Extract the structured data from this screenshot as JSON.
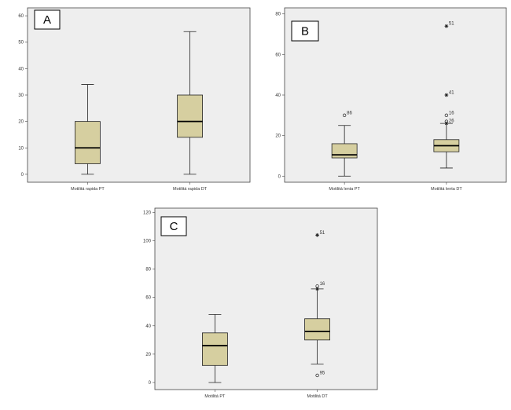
{
  "colors": {
    "plot_background": "#eeeeee",
    "box_fill": "#d6cfa0",
    "stroke": "#222222",
    "label_box": "#ffffff"
  },
  "chart_data": [
    {
      "type": "box",
      "panel_label": "A",
      "ylim": [
        -3,
        63
      ],
      "yticks": [
        0,
        10,
        20,
        30,
        40,
        50,
        60
      ],
      "grid": false,
      "categories": [
        "Motilitá rapida PT",
        "Motilitá rapida DT"
      ],
      "boxes": [
        {
          "min": 0,
          "q1": 4,
          "median": 10,
          "q3": 20,
          "max": 34,
          "outliers": []
        },
        {
          "min": 0,
          "q1": 14,
          "median": 20,
          "q3": 30,
          "max": 54,
          "outliers": []
        }
      ]
    },
    {
      "type": "box",
      "panel_label": "B",
      "ylim": [
        -3,
        83
      ],
      "yticks": [
        0,
        20,
        40,
        60,
        80
      ],
      "grid": false,
      "categories": [
        "Motilitá lenta PT",
        "Motilitá lenta DT"
      ],
      "boxes": [
        {
          "min": 0,
          "q1": 9,
          "median": 10.5,
          "q3": 16,
          "max": 25,
          "outliers": [
            {
              "value": 30,
              "label": "86",
              "symbol": "circle"
            }
          ]
        },
        {
          "min": 4,
          "q1": 12,
          "median": 15,
          "q3": 18,
          "max": 26,
          "outliers": [
            {
              "value": 74,
              "label": "51",
              "symbol": "star"
            },
            {
              "value": 40,
              "label": "41",
              "symbol": "star"
            },
            {
              "value": 30,
              "label": "16",
              "symbol": "circle"
            },
            {
              "value": 27,
              "label": "",
              "symbol": "circle"
            },
            {
              "value": 26,
              "label": "26",
              "symbol": "star"
            }
          ]
        }
      ]
    },
    {
      "type": "box",
      "panel_label": "C",
      "ylim": [
        -5,
        123
      ],
      "yticks": [
        0,
        20,
        40,
        60,
        80,
        100,
        120
      ],
      "grid": false,
      "categories": [
        "Motilitá PT",
        "Motilitá DT"
      ],
      "boxes": [
        {
          "min": 0,
          "q1": 12,
          "median": 26,
          "q3": 35,
          "max": 48,
          "outliers": []
        },
        {
          "min": 13,
          "q1": 30,
          "median": 36,
          "q3": 45,
          "max": 66,
          "outliers": [
            {
              "value": 104,
              "label": "51",
              "symbol": "star"
            },
            {
              "value": 68,
              "label": "16",
              "symbol": "circle"
            },
            {
              "value": 66,
              "label": "",
              "symbol": "star"
            },
            {
              "value": 5,
              "label": "95",
              "symbol": "circle"
            }
          ]
        }
      ]
    }
  ]
}
